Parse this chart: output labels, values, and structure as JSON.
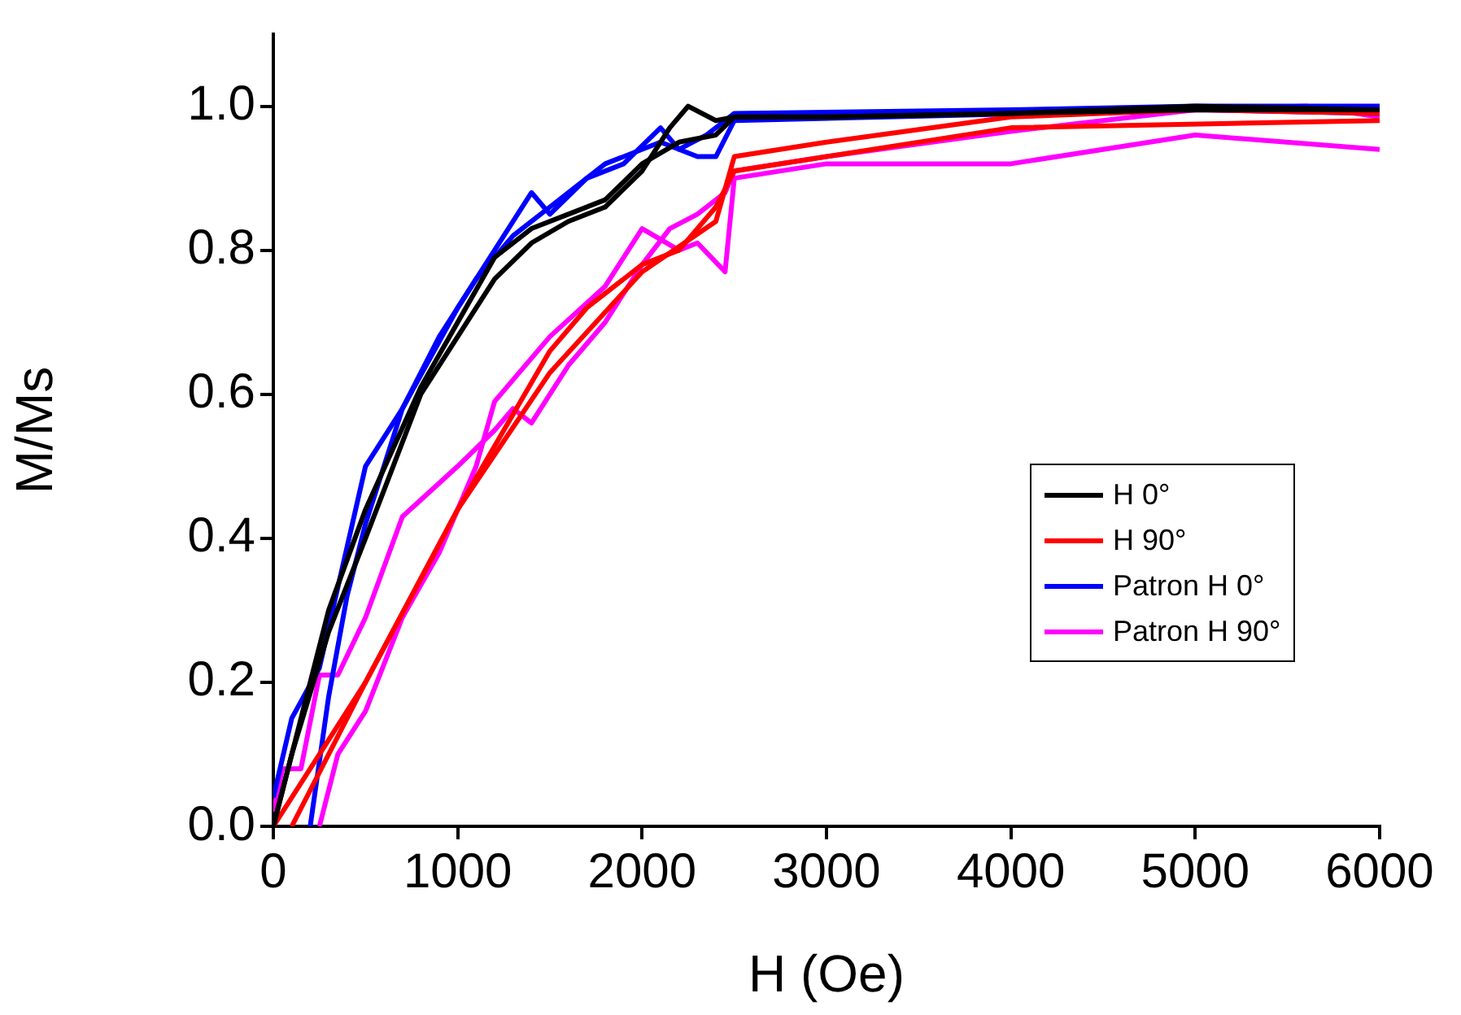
{
  "chart_data": {
    "type": "line",
    "xlabel": "H (Oe)",
    "ylabel": "M/Ms",
    "xlim": [
      0,
      6000
    ],
    "xticks": [
      0,
      1000,
      2000,
      3000,
      4000,
      5000,
      6000
    ],
    "ylim": [
      0,
      1.1
    ],
    "yticks": [
      {
        "value": 0,
        "label": "0.0"
      },
      0.2,
      0.4,
      0.6,
      0.8,
      {
        "value": 1,
        "label": "1.0"
      }
    ],
    "grid": false,
    "legend": "right",
    "marker": "none",
    "line_style": "solid",
    "series": [
      {
        "name": "H 0°",
        "color": "#000000",
        "x": [
          0,
          100,
          300,
          500,
          800,
          1000,
          1200,
          1400,
          1600,
          1800,
          2000,
          2150,
          2250,
          2400,
          2500,
          3000,
          4000,
          5000,
          6000
        ],
        "values": [
          0,
          0.1,
          0.27,
          0.4,
          0.6,
          0.68,
          0.76,
          0.81,
          0.84,
          0.86,
          0.91,
          0.97,
          1.0,
          0.98,
          0.985,
          0.985,
          0.99,
          1.0,
          0.995
        ]
      },
      {
        "color": "#000000",
        "x": [
          0,
          100,
          300,
          500,
          800,
          1000,
          1200,
          1400,
          1600,
          1800,
          2000,
          2200,
          2400,
          2500,
          3000,
          4000,
          5000,
          6000
        ],
        "values": [
          0,
          0.1,
          0.3,
          0.44,
          0.61,
          0.7,
          0.79,
          0.83,
          0.85,
          0.87,
          0.92,
          0.95,
          0.96,
          0.985,
          0.985,
          0.99,
          0.995,
          0.995
        ]
      },
      {
        "name": "H 90°",
        "color": "#ff0000",
        "x": [
          0,
          500,
          1000,
          1500,
          2000,
          2400,
          2500,
          3000,
          4000,
          5000,
          6000
        ],
        "values": [
          0,
          0.2,
          0.44,
          0.63,
          0.77,
          0.84,
          0.93,
          0.95,
          0.985,
          0.995,
          0.99
        ]
      },
      {
        "color": "#ff0000",
        "x": [
          100,
          500,
          1000,
          1500,
          1700,
          2000,
          2200,
          2400,
          2500,
          4000,
          6000
        ],
        "values": [
          0,
          0.2,
          0.44,
          0.66,
          0.72,
          0.78,
          0.8,
          0.86,
          0.91,
          0.97,
          0.98
        ]
      },
      {
        "name": "Patron H 0°",
        "color": "#0000ff",
        "x": [
          0,
          100,
          250,
          500,
          700,
          1000,
          1200,
          1400,
          1500,
          1700,
          1900,
          2100,
          2200,
          2350,
          2450,
          2500,
          4000,
          5000,
          6000
        ],
        "values": [
          0.04,
          0.15,
          0.22,
          0.5,
          0.58,
          0.72,
          0.8,
          0.88,
          0.85,
          0.9,
          0.92,
          0.97,
          0.94,
          0.96,
          0.98,
          0.99,
          0.995,
          1.0,
          1.0
        ]
      },
      {
        "color": "#0000ff",
        "x": [
          200,
          300,
          400,
          500,
          700,
          900,
          1100,
          1300,
          1500,
          1800,
          2100,
          2300,
          2400,
          2500,
          5000,
          6000
        ],
        "values": [
          0,
          0.18,
          0.32,
          0.42,
          0.58,
          0.68,
          0.76,
          0.82,
          0.86,
          0.92,
          0.95,
          0.93,
          0.93,
          0.98,
          0.995,
          0.99
        ]
      },
      {
        "name": "Patron H 90°",
        "color": "#ff00ff",
        "x": [
          0,
          50,
          150,
          250,
          350,
          500,
          700,
          1000,
          1200,
          1300,
          1400,
          1600,
          1800,
          2000,
          2150,
          2300,
          2450,
          2500,
          3000,
          4000,
          5000,
          5600,
          6000
        ],
        "values": [
          0.02,
          0.08,
          0.08,
          0.21,
          0.21,
          0.29,
          0.43,
          0.5,
          0.55,
          0.58,
          0.56,
          0.64,
          0.7,
          0.78,
          0.83,
          0.85,
          0.88,
          0.91,
          0.93,
          0.965,
          0.995,
          1.0,
          0.985
        ]
      },
      {
        "color": "#ff00ff",
        "x": [
          250,
          350,
          500,
          700,
          900,
          1100,
          1200,
          1500,
          1800,
          2000,
          2200,
          2300,
          2450,
          2500,
          3000,
          4000,
          5000,
          6000
        ],
        "values": [
          0,
          0.1,
          0.16,
          0.29,
          0.38,
          0.5,
          0.59,
          0.68,
          0.75,
          0.83,
          0.8,
          0.81,
          0.77,
          0.9,
          0.92,
          0.92,
          0.96,
          0.94
        ]
      }
    ]
  }
}
